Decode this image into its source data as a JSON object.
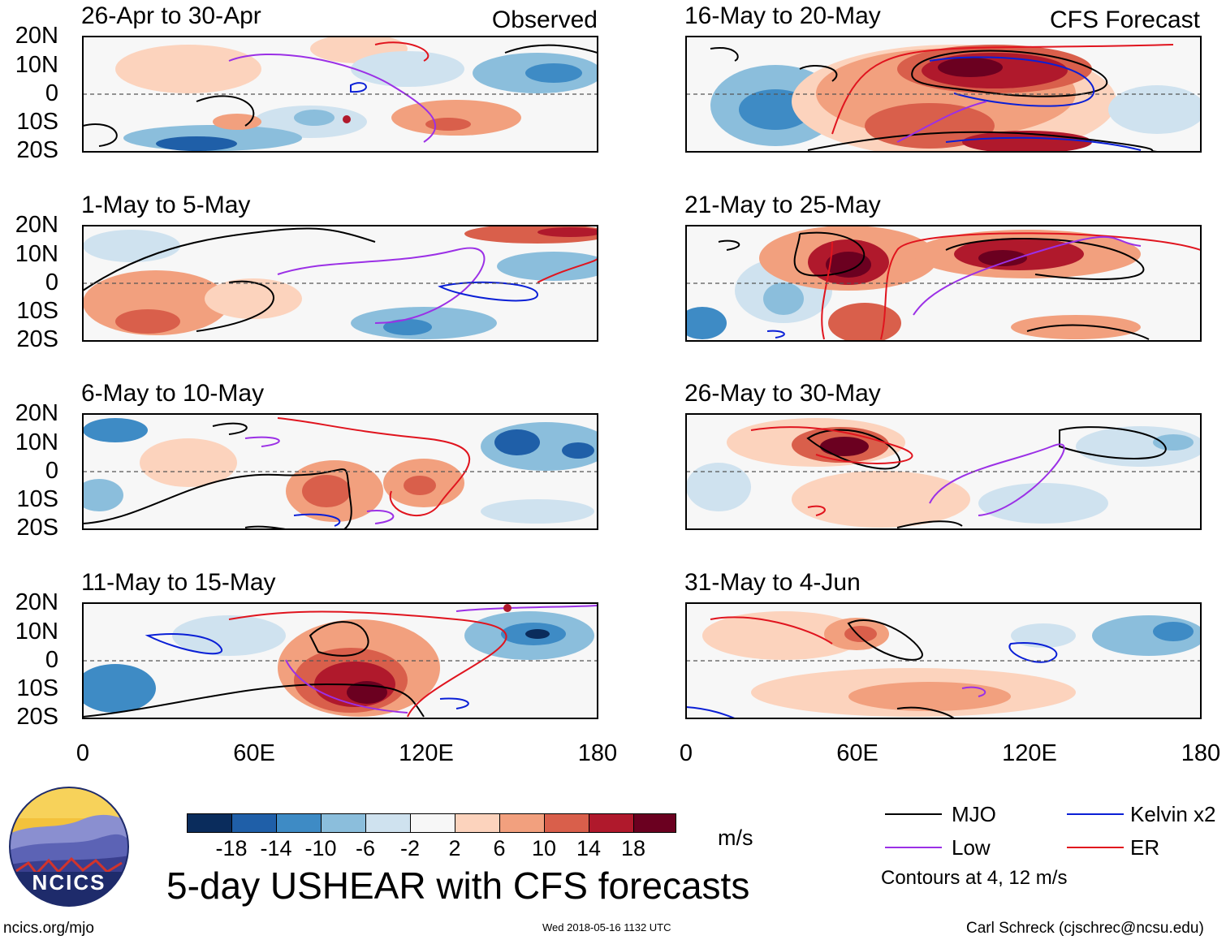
{
  "panels": [
    {
      "title": "26-Apr to 30-Apr",
      "tag": "Observed"
    },
    {
      "title": "1-May to 5-May",
      "tag": ""
    },
    {
      "title": "6-May to 10-May",
      "tag": ""
    },
    {
      "title": "11-May to 15-May",
      "tag": ""
    },
    {
      "title": "16-May to 20-May",
      "tag": "CFS Forecast"
    },
    {
      "title": "21-May to 25-May",
      "tag": ""
    },
    {
      "title": "26-May to 30-May",
      "tag": ""
    },
    {
      "title": "31-May to 4-Jun",
      "tag": ""
    }
  ],
  "lat_labels": [
    "20N",
    "10N",
    "0",
    "10S",
    "20S"
  ],
  "lon_labels": [
    "0",
    "60E",
    "120E",
    "180"
  ],
  "colorbar": {
    "ticks": [
      "-18",
      "-14",
      "-10",
      "-6",
      "-2",
      "2",
      "6",
      "10",
      "14",
      "18"
    ],
    "colors": [
      "#0a2c5c",
      "#1f5fa8",
      "#3e8bc5",
      "#8bbedc",
      "#cfe2ef",
      "#f7f7f7",
      "#fcd3bd",
      "#f2a07e",
      "#d95f4b",
      "#b0192c",
      "#6b0020"
    ],
    "units": "m/s"
  },
  "legend": {
    "items": [
      {
        "label": "MJO",
        "color": "#000000"
      },
      {
        "label": "Kelvin x2",
        "color": "#0a1fd6"
      },
      {
        "label": "Low",
        "color": "#9b30e6"
      },
      {
        "label": "ER",
        "color": "#e0141e"
      }
    ],
    "note": "Contours at 4, 12 m/s"
  },
  "main_title": "5-day USHEAR with CFS forecasts",
  "logo_text": "NCICS",
  "footer": {
    "left": "ncics.org/mjo",
    "center": "Wed 2018-05-16 1132 UTC",
    "right": "Carl Schreck (cjschrec@ncsu.edu)"
  }
}
